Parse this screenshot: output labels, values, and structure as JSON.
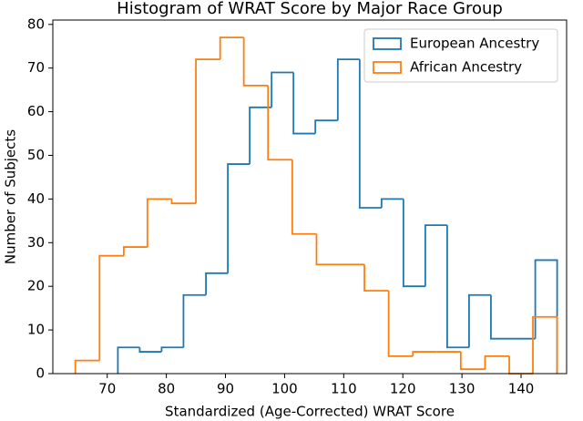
{
  "chart_data": {
    "type": "histogram",
    "title": "Histogram of WRAT Score by Major Race Group",
    "xlabel": "Standardized (Age-Corrected) WRAT Score",
    "ylabel": "Number of Subjects",
    "xlim": [
      60.8,
      147.7
    ],
    "xticks": [
      70,
      80,
      90,
      100,
      110,
      120,
      130,
      140
    ],
    "ylim": [
      0,
      81
    ],
    "yticks": [
      0,
      10,
      20,
      30,
      40,
      50,
      60,
      70,
      80
    ],
    "legend": "upper right",
    "series": [
      {
        "name": "European Ancestry",
        "color": "#1f77b4",
        "bins": [
          71.8,
          75.5,
          79.2,
          82.9,
          86.7,
          90.4,
          94.1,
          97.8,
          101.5,
          105.2,
          109.0,
          112.7,
          116.4,
          120.1,
          123.8,
          127.5,
          131.2,
          134.9,
          138.6,
          142.4,
          146.1
        ],
        "values": [
          6,
          5,
          6,
          18,
          23,
          48,
          61,
          69,
          55,
          58,
          72,
          38,
          40,
          20,
          34,
          6,
          18,
          8,
          8,
          26
        ]
      },
      {
        "name": "African Ancestry",
        "color": "#ff7f0e",
        "bins": [
          64.6,
          68.7,
          72.8,
          76.8,
          80.9,
          85.0,
          89.1,
          93.1,
          97.2,
          101.3,
          105.4,
          109.4,
          113.5,
          117.6,
          121.7,
          125.7,
          129.8,
          133.9,
          138.0,
          142.0,
          146.1
        ],
        "values": [
          3,
          27,
          29,
          40,
          39,
          72,
          77,
          66,
          49,
          32,
          25,
          25,
          19,
          4,
          5,
          5,
          1,
          4,
          0,
          13
        ]
      }
    ]
  }
}
